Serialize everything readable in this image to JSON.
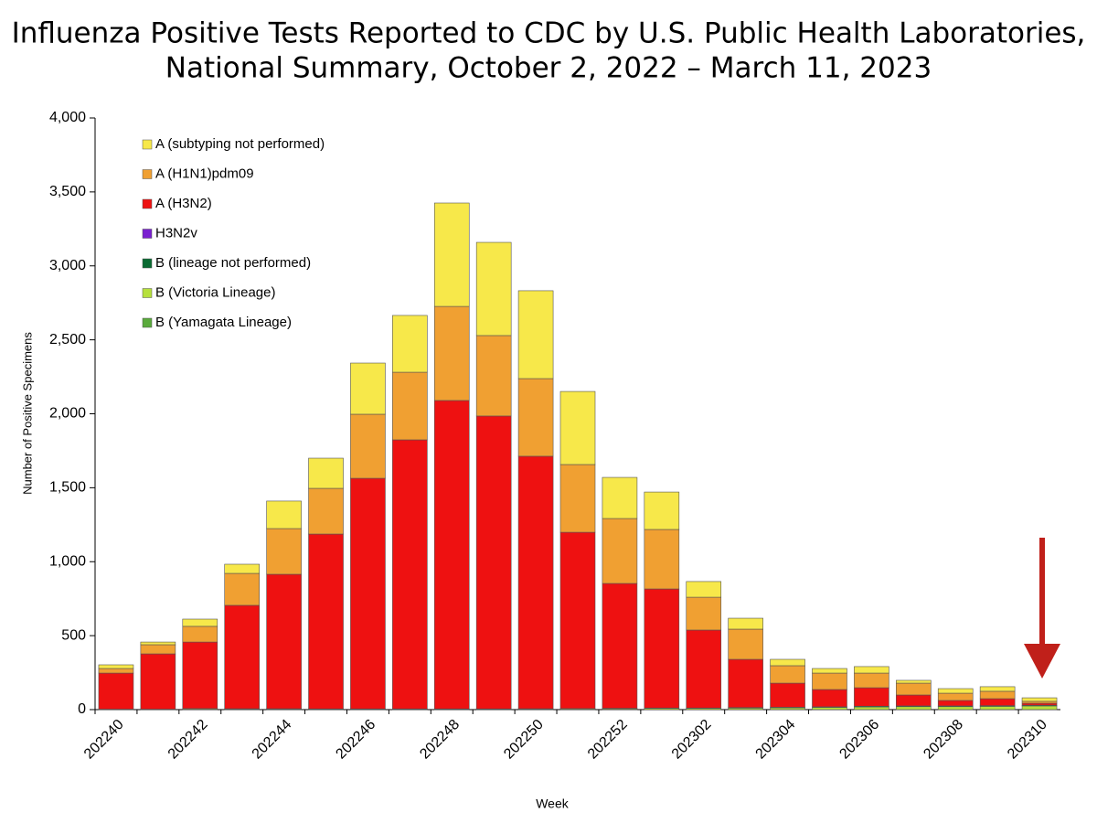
{
  "chart_data": {
    "type": "stacked-bar",
    "title": [
      "Influenza Positive Tests Reported to CDC by U.S. Public Health Laboratories,",
      "National Summary, October 2, 2022 – March 11, 2023"
    ],
    "x_label": "Week",
    "y_label": "Number of Positive Specimens",
    "categories": [
      "202240",
      null,
      "202242",
      null,
      "202244",
      null,
      "202246",
      null,
      "202248",
      null,
      "202250",
      null,
      "202252",
      null,
      "202302",
      null,
      "202304",
      null,
      "202306",
      null,
      "202308",
      null,
      "202310"
    ],
    "ylim": [
      0,
      4000
    ],
    "yticks": [
      0,
      500,
      {
        "value": 1000,
        "label": "1,000"
      },
      {
        "value": 1500,
        "label": "1,500"
      },
      {
        "value": 2000,
        "label": "2,000"
      },
      {
        "value": 2500,
        "label": "2,500"
      },
      {
        "value": 3000,
        "label": "3,000"
      },
      {
        "value": 3500,
        "label": "3,500"
      },
      {
        "value": 4000,
        "label": "4,000"
      }
    ],
    "legend_position": "upper left",
    "series": [
      {
        "name": "A (subtyping not performed)",
        "color": "#f7e84a",
        "values": [
          25,
          18,
          49,
          62,
          186,
          204,
          346,
          384,
          699,
          630,
          594,
          494,
          278,
          253,
          106,
          74,
          43,
          31,
          44,
          19,
          31,
          31,
          24
        ]
      },
      {
        "name": "A (H1N1)pdm09",
        "color": "#f0a032",
        "values": [
          31,
          62,
          106,
          216,
          309,
          309,
          433,
          457,
          636,
          544,
          525,
          458,
          439,
          402,
          222,
          204,
          118,
          111,
          99,
          80,
          49,
          50,
          13
        ]
      },
      {
        "name": "A (H3N2)",
        "color": "#ee1111",
        "values": [
          244,
          374,
          450,
          699,
          909,
          1182,
          1559,
          1819,
          2085,
          1980,
          1707,
          1192,
          844,
          805,
          527,
          326,
          163,
          117,
          125,
          74,
          37,
          47,
          13
        ]
      },
      {
        "name": "H3N2v",
        "color": "#7a1fd0",
        "values": [
          0,
          0,
          0,
          0,
          0,
          0,
          0,
          0,
          0,
          0,
          0,
          0,
          0,
          0,
          0,
          0,
          0,
          0,
          0,
          0,
          0,
          0,
          0
        ]
      },
      {
        "name": "B (lineage not performed)",
        "color": "#0a6b32",
        "values": [
          1,
          1,
          2,
          2,
          2,
          2,
          2,
          2,
          2,
          2,
          2,
          2,
          3,
          3,
          3,
          4,
          4,
          4,
          5,
          5,
          5,
          5,
          5
        ]
      },
      {
        "name": "B (Victoria Lineage)",
        "color": "#b6e03c",
        "values": [
          2,
          2,
          5,
          4,
          4,
          3,
          3,
          3,
          3,
          3,
          4,
          5,
          6,
          8,
          8,
          10,
          12,
          15,
          18,
          20,
          20,
          22,
          25
        ]
      },
      {
        "name": "B (Yamagata Lineage)",
        "color": "#5aaa3c",
        "values": [
          0,
          0,
          0,
          0,
          0,
          0,
          0,
          0,
          0,
          0,
          0,
          0,
          0,
          0,
          0,
          0,
          0,
          0,
          0,
          0,
          0,
          0,
          0
        ]
      }
    ]
  }
}
